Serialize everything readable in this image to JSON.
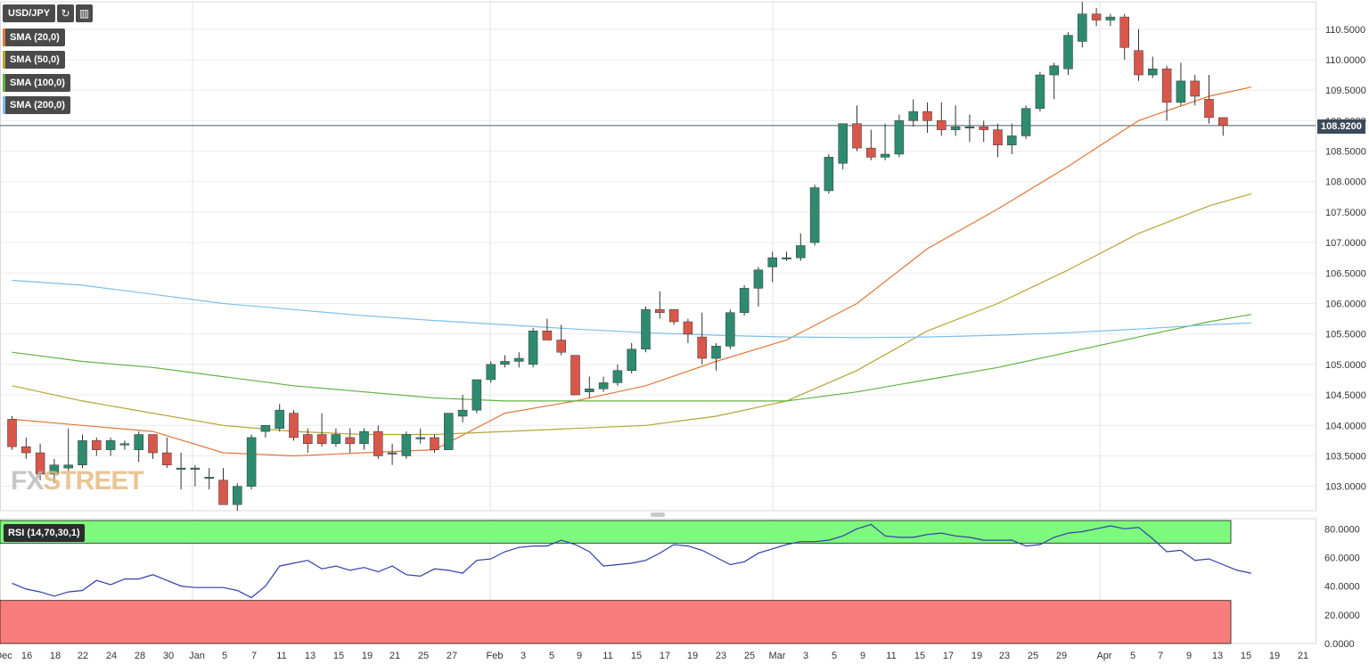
{
  "symbol": "USD/JPY",
  "toolbar": {
    "refresh_icon": "refresh-icon",
    "settings_icon": "chart-settings-icon"
  },
  "indicators": [
    {
      "label": "SMA (20,0)",
      "color": "#e0773a"
    },
    {
      "label": "SMA (50,0)",
      "color": "#b5a535"
    },
    {
      "label": "SMA (100,0)",
      "color": "#5fb342"
    },
    {
      "label": "SMA (200,0)",
      "color": "#7dbfe6"
    }
  ],
  "watermark": {
    "part1": "FX",
    "part2": "STREET"
  },
  "current_price": "108.9200",
  "rsi_label": "RSI (14,70,30,1)",
  "colors": {
    "up": "#2e8b70",
    "down": "#d9574a",
    "rsi_line": "#2f3fa8",
    "overbought": "#7dfa7d",
    "oversold": "#fa7d7d"
  },
  "chart_data": {
    "type": "candlestick",
    "price_axis": {
      "ticks": [
        "110.5000",
        "110.0000",
        "109.5000",
        "109.0000",
        "108.5000",
        "108.0000",
        "107.5000",
        "107.0000",
        "106.5000",
        "106.0000",
        "105.5000",
        "105.0000",
        "104.5000",
        "104.0000",
        "103.5000",
        "103.0000"
      ],
      "range": [
        102.6,
        110.95
      ]
    },
    "x_labels": [
      "Dec",
      "16",
      "18",
      "22",
      "24",
      "28",
      "30",
      "Jan",
      "5",
      "7",
      "11",
      "13",
      "15",
      "19",
      "21",
      "25",
      "27",
      "Feb",
      "3",
      "5",
      "9",
      "11",
      "15",
      "17",
      "19",
      "23",
      "25",
      "Mar",
      "3",
      "5",
      "9",
      "11",
      "15",
      "17",
      "19",
      "23",
      "25",
      "29",
      "Apr",
      "5",
      "7",
      "9",
      "13",
      "15",
      "19",
      "21"
    ],
    "candles": [
      {
        "o": 104.1,
        "h": 104.15,
        "l": 103.6,
        "c": 103.65
      },
      {
        "o": 103.65,
        "h": 103.8,
        "l": 103.45,
        "c": 103.55
      },
      {
        "o": 103.55,
        "h": 103.7,
        "l": 103.1,
        "c": 103.2
      },
      {
        "o": 103.2,
        "h": 103.45,
        "l": 103.05,
        "c": 103.35
      },
      {
        "o": 103.3,
        "h": 103.95,
        "l": 103.25,
        "c": 103.35
      },
      {
        "o": 103.35,
        "h": 103.85,
        "l": 103.3,
        "c": 103.75
      },
      {
        "o": 103.75,
        "h": 103.8,
        "l": 103.5,
        "c": 103.6
      },
      {
        "o": 103.6,
        "h": 103.8,
        "l": 103.5,
        "c": 103.75
      },
      {
        "o": 103.7,
        "h": 103.75,
        "l": 103.6,
        "c": 103.7
      },
      {
        "o": 103.6,
        "h": 103.9,
        "l": 103.4,
        "c": 103.85
      },
      {
        "o": 103.85,
        "h": 103.85,
        "l": 103.45,
        "c": 103.55
      },
      {
        "o": 103.55,
        "h": 103.8,
        "l": 103.3,
        "c": 103.35
      },
      {
        "o": 103.3,
        "h": 103.55,
        "l": 102.95,
        "c": 103.3
      },
      {
        "o": 103.3,
        "h": 103.35,
        "l": 103.0,
        "c": 103.3
      },
      {
        "o": 103.15,
        "h": 103.3,
        "l": 102.95,
        "c": 103.15
      },
      {
        "o": 103.1,
        "h": 103.3,
        "l": 102.7,
        "c": 102.7
      },
      {
        "o": 102.7,
        "h": 103.05,
        "l": 102.6,
        "c": 103.0
      },
      {
        "o": 103.0,
        "h": 103.85,
        "l": 102.95,
        "c": 103.8
      },
      {
        "o": 103.9,
        "h": 104.0,
        "l": 103.8,
        "c": 104.0
      },
      {
        "o": 103.95,
        "h": 104.35,
        "l": 103.9,
        "c": 104.25
      },
      {
        "o": 104.2,
        "h": 104.25,
        "l": 103.75,
        "c": 103.8
      },
      {
        "o": 103.85,
        "h": 103.95,
        "l": 103.55,
        "c": 103.7
      },
      {
        "o": 103.85,
        "h": 104.2,
        "l": 103.65,
        "c": 103.7
      },
      {
        "o": 103.7,
        "h": 103.95,
        "l": 103.65,
        "c": 103.85
      },
      {
        "o": 103.8,
        "h": 103.95,
        "l": 103.55,
        "c": 103.7
      },
      {
        "o": 103.7,
        "h": 103.95,
        "l": 103.6,
        "c": 103.9
      },
      {
        "o": 103.9,
        "h": 104.0,
        "l": 103.45,
        "c": 103.5
      },
      {
        "o": 103.55,
        "h": 103.7,
        "l": 103.35,
        "c": 103.55
      },
      {
        "o": 103.5,
        "h": 103.9,
        "l": 103.45,
        "c": 103.85
      },
      {
        "o": 103.8,
        "h": 103.95,
        "l": 103.7,
        "c": 103.8
      },
      {
        "o": 103.8,
        "h": 103.85,
        "l": 103.55,
        "c": 103.6
      },
      {
        "o": 103.6,
        "h": 104.2,
        "l": 103.6,
        "c": 104.2
      },
      {
        "o": 104.15,
        "h": 104.5,
        "l": 104.05,
        "c": 104.25
      },
      {
        "o": 104.25,
        "h": 104.75,
        "l": 104.2,
        "c": 104.75
      },
      {
        "o": 104.75,
        "h": 105.05,
        "l": 104.7,
        "c": 105.0
      },
      {
        "o": 105.0,
        "h": 105.15,
        "l": 104.95,
        "c": 105.05
      },
      {
        "o": 105.05,
        "h": 105.2,
        "l": 104.95,
        "c": 105.1
      },
      {
        "o": 105.0,
        "h": 105.6,
        "l": 104.95,
        "c": 105.55
      },
      {
        "o": 105.55,
        "h": 105.75,
        "l": 105.4,
        "c": 105.4
      },
      {
        "o": 105.4,
        "h": 105.65,
        "l": 105.15,
        "c": 105.2
      },
      {
        "o": 105.15,
        "h": 105.15,
        "l": 104.5,
        "c": 104.5
      },
      {
        "o": 104.55,
        "h": 104.8,
        "l": 104.45,
        "c": 104.6
      },
      {
        "o": 104.6,
        "h": 104.8,
        "l": 104.55,
        "c": 104.7
      },
      {
        "o": 104.7,
        "h": 105.0,
        "l": 104.65,
        "c": 104.9
      },
      {
        "o": 104.9,
        "h": 105.35,
        "l": 104.85,
        "c": 105.25
      },
      {
        "o": 105.25,
        "h": 105.95,
        "l": 105.2,
        "c": 105.9
      },
      {
        "o": 105.9,
        "h": 106.2,
        "l": 105.75,
        "c": 105.85
      },
      {
        "o": 105.9,
        "h": 105.9,
        "l": 105.65,
        "c": 105.7
      },
      {
        "o": 105.7,
        "h": 105.75,
        "l": 105.35,
        "c": 105.5
      },
      {
        "o": 105.45,
        "h": 105.85,
        "l": 105.0,
        "c": 105.1
      },
      {
        "o": 105.1,
        "h": 105.35,
        "l": 104.9,
        "c": 105.3
      },
      {
        "o": 105.3,
        "h": 105.9,
        "l": 105.25,
        "c": 105.85
      },
      {
        "o": 105.85,
        "h": 106.3,
        "l": 105.8,
        "c": 106.25
      },
      {
        "o": 106.25,
        "h": 106.6,
        "l": 105.95,
        "c": 106.55
      },
      {
        "o": 106.6,
        "h": 106.85,
        "l": 106.35,
        "c": 106.75
      },
      {
        "o": 106.75,
        "h": 106.85,
        "l": 106.7,
        "c": 106.75
      },
      {
        "o": 106.75,
        "h": 107.15,
        "l": 106.7,
        "c": 106.95
      },
      {
        "o": 107.0,
        "h": 107.95,
        "l": 106.95,
        "c": 107.9
      },
      {
        "o": 107.85,
        "h": 108.45,
        "l": 107.8,
        "c": 108.4
      },
      {
        "o": 108.3,
        "h": 108.95,
        "l": 108.2,
        "c": 108.95
      },
      {
        "o": 108.95,
        "h": 109.25,
        "l": 108.5,
        "c": 108.55
      },
      {
        "o": 108.55,
        "h": 108.85,
        "l": 108.35,
        "c": 108.4
      },
      {
        "o": 108.4,
        "h": 108.95,
        "l": 108.35,
        "c": 108.45
      },
      {
        "o": 108.45,
        "h": 109.1,
        "l": 108.4,
        "c": 109.0
      },
      {
        "o": 109.0,
        "h": 109.35,
        "l": 108.9,
        "c": 109.15
      },
      {
        "o": 109.15,
        "h": 109.3,
        "l": 108.8,
        "c": 109.0
      },
      {
        "o": 109.0,
        "h": 109.3,
        "l": 108.75,
        "c": 108.85
      },
      {
        "o": 108.85,
        "h": 109.25,
        "l": 108.75,
        "c": 108.9
      },
      {
        "o": 108.9,
        "h": 109.1,
        "l": 108.65,
        "c": 108.9
      },
      {
        "o": 108.9,
        "h": 109.0,
        "l": 108.65,
        "c": 108.85
      },
      {
        "o": 108.85,
        "h": 108.95,
        "l": 108.4,
        "c": 108.6
      },
      {
        "o": 108.6,
        "h": 108.95,
        "l": 108.45,
        "c": 108.75
      },
      {
        "o": 108.75,
        "h": 109.25,
        "l": 108.7,
        "c": 109.2
      },
      {
        "o": 109.2,
        "h": 109.8,
        "l": 109.15,
        "c": 109.75
      },
      {
        "o": 109.75,
        "h": 109.95,
        "l": 109.35,
        "c": 109.9
      },
      {
        "o": 109.85,
        "h": 110.45,
        "l": 109.75,
        "c": 110.4
      },
      {
        "o": 110.3,
        "h": 110.95,
        "l": 110.2,
        "c": 110.75
      },
      {
        "o": 110.75,
        "h": 110.85,
        "l": 110.55,
        "c": 110.65
      },
      {
        "o": 110.65,
        "h": 110.75,
        "l": 110.55,
        "c": 110.7
      },
      {
        "o": 110.7,
        "h": 110.75,
        "l": 110.0,
        "c": 110.2
      },
      {
        "o": 110.15,
        "h": 110.5,
        "l": 109.65,
        "c": 109.75
      },
      {
        "o": 109.75,
        "h": 110.05,
        "l": 109.7,
        "c": 109.85
      },
      {
        "o": 109.85,
        "h": 109.9,
        "l": 109.0,
        "c": 109.3
      },
      {
        "o": 109.3,
        "h": 109.95,
        "l": 109.25,
        "c": 109.65
      },
      {
        "o": 109.65,
        "h": 109.75,
        "l": 109.25,
        "c": 109.4
      },
      {
        "o": 109.35,
        "h": 109.75,
        "l": 108.95,
        "c": 109.05
      },
      {
        "o": 109.05,
        "h": 109.05,
        "l": 108.75,
        "c": 108.92
      }
    ],
    "sma": [
      {
        "name": "SMA (20,0)",
        "points": [
          [
            0,
            104.1
          ],
          [
            5,
            104.0
          ],
          [
            10,
            103.9
          ],
          [
            15,
            103.55
          ],
          [
            20,
            103.5
          ],
          [
            25,
            103.55
          ],
          [
            30,
            103.6
          ],
          [
            35,
            104.2
          ],
          [
            40,
            104.4
          ],
          [
            45,
            104.65
          ],
          [
            50,
            105.05
          ],
          [
            55,
            105.4
          ],
          [
            60,
            106.0
          ],
          [
            65,
            106.9
          ],
          [
            70,
            107.55
          ],
          [
            75,
            108.25
          ],
          [
            80,
            109.0
          ],
          [
            85,
            109.4
          ],
          [
            88,
            109.55
          ]
        ]
      },
      {
        "name": "SMA (50,0)",
        "points": [
          [
            0,
            104.65
          ],
          [
            5,
            104.4
          ],
          [
            10,
            104.2
          ],
          [
            15,
            104.0
          ],
          [
            20,
            103.9
          ],
          [
            25,
            103.85
          ],
          [
            30,
            103.85
          ],
          [
            35,
            103.9
          ],
          [
            40,
            103.95
          ],
          [
            45,
            104.0
          ],
          [
            50,
            104.15
          ],
          [
            55,
            104.4
          ],
          [
            60,
            104.9
          ],
          [
            65,
            105.55
          ],
          [
            70,
            106.0
          ],
          [
            75,
            106.55
          ],
          [
            80,
            107.15
          ],
          [
            85,
            107.6
          ],
          [
            88,
            107.8
          ]
        ]
      },
      {
        "name": "SMA (100,0)",
        "points": [
          [
            0,
            105.2
          ],
          [
            5,
            105.05
          ],
          [
            10,
            104.95
          ],
          [
            15,
            104.8
          ],
          [
            20,
            104.65
          ],
          [
            25,
            104.55
          ],
          [
            30,
            104.45
          ],
          [
            35,
            104.4
          ],
          [
            40,
            104.4
          ],
          [
            45,
            104.4
          ],
          [
            50,
            104.4
          ],
          [
            55,
            104.4
          ],
          [
            60,
            104.55
          ],
          [
            65,
            104.75
          ],
          [
            70,
            104.95
          ],
          [
            75,
            105.2
          ],
          [
            80,
            105.45
          ],
          [
            85,
            105.7
          ],
          [
            88,
            105.82
          ]
        ]
      },
      {
        "name": "SMA (200,0)",
        "points": [
          [
            0,
            106.38
          ],
          [
            5,
            106.3
          ],
          [
            10,
            106.15
          ],
          [
            15,
            106.0
          ],
          [
            20,
            105.9
          ],
          [
            25,
            105.8
          ],
          [
            30,
            105.72
          ],
          [
            35,
            105.65
          ],
          [
            40,
            105.58
          ],
          [
            45,
            105.52
          ],
          [
            50,
            105.48
          ],
          [
            55,
            105.45
          ],
          [
            60,
            105.44
          ],
          [
            65,
            105.45
          ],
          [
            70,
            105.48
          ],
          [
            75,
            105.52
          ],
          [
            80,
            105.58
          ],
          [
            85,
            105.65
          ],
          [
            88,
            105.68
          ]
        ]
      }
    ],
    "rsi": {
      "ticks": [
        "80.0000",
        "60.0000",
        "40.0000",
        "20.0000",
        "0.0000"
      ],
      "overbought": 70,
      "oversold": 30,
      "values": [
        42,
        38,
        36,
        33,
        36,
        37,
        44,
        41,
        45,
        45,
        48,
        44,
        40,
        39,
        39,
        39,
        37,
        32,
        40,
        54,
        56,
        58,
        52,
        54,
        51,
        53,
        50,
        54,
        48,
        47,
        52,
        51,
        49,
        58,
        59,
        64,
        67,
        68,
        68,
        72,
        69,
        64,
        54,
        55,
        56,
        58,
        63,
        69,
        68,
        65,
        60,
        55,
        57,
        63,
        66,
        69,
        71,
        71,
        72,
        75,
        80,
        83,
        75,
        74,
        74,
        76,
        77,
        75,
        74,
        72,
        72,
        72,
        68,
        69,
        74,
        77,
        78,
        80,
        82,
        80,
        81,
        73,
        64,
        65,
        58,
        59,
        55,
        51,
        49
      ]
    }
  }
}
